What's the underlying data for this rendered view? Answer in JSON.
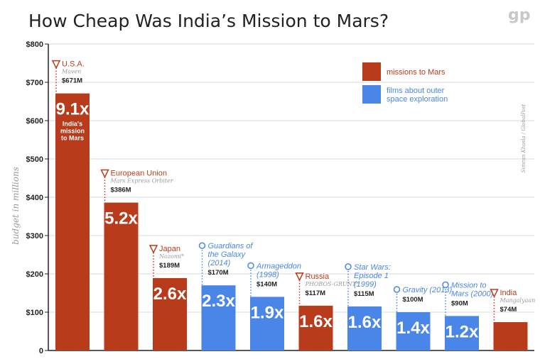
{
  "title": "How Cheap Was India’s Mission to Mars?",
  "logo_text": "gp",
  "credit": "Simran Khosla / GlobalPost",
  "colors": {
    "mars": "#b83c1c",
    "film": "#4a86e8",
    "grid": "#d9d9d9",
    "axis": "#222222"
  },
  "legend": [
    {
      "label": "missions to Mars",
      "type": "mars"
    },
    {
      "label": "films about outer space exploration",
      "type": "film"
    }
  ],
  "chart_data": {
    "type": "bar",
    "title": "How Cheap Was India’s Mission to Mars?",
    "ylabel": "budget in millions",
    "ylim": [
      0,
      800
    ],
    "yticks": [
      "0",
      "$100",
      "$200",
      "$300",
      "$400",
      "$500",
      "$600",
      "$700",
      "$800"
    ],
    "grid": true,
    "legend_position": "top-right",
    "bars": [
      {
        "category": "U.S.A.",
        "subtitle": "Maven",
        "value_label": "$671M",
        "value": 671,
        "multiplier": "9.1x",
        "note": "India's mission to Mars",
        "type": "mars"
      },
      {
        "category": "European Union",
        "subtitle": "Mars Express Orbiter",
        "value_label": "$386M",
        "value": 386,
        "multiplier": "5.2x",
        "type": "mars"
      },
      {
        "category": "Japan",
        "subtitle": "Nozomi*",
        "value_label": "$189M",
        "value": 189,
        "multiplier": "2.6x",
        "type": "mars"
      },
      {
        "category": "Guardians of the Galaxy (2014)",
        "value_label": "$170M",
        "value": 170,
        "multiplier": "2.3x",
        "type": "film"
      },
      {
        "category": "Armageddon (1998)",
        "value_label": "$140M",
        "value": 140,
        "multiplier": "1.9x",
        "type": "film"
      },
      {
        "category": "Russia",
        "subtitle": "PHOBOS-GRUNT*",
        "value_label": "$117M",
        "value": 117,
        "multiplier": "1.6x",
        "type": "mars"
      },
      {
        "category": "Star Wars: Episode 1 (1999)",
        "value_label": "$115M",
        "value": 115,
        "multiplier": "1.6x",
        "type": "film"
      },
      {
        "category": "Gravity (2013)",
        "value_label": "$100M",
        "value": 100,
        "multiplier": "1.4x",
        "type": "film"
      },
      {
        "category": "Mission to Mars (2000)",
        "value_label": "$90M",
        "value": 90,
        "multiplier": "1.2x",
        "type": "film"
      },
      {
        "category": "India",
        "subtitle": "Mangalyaan",
        "value_label": "$74M",
        "value": 74,
        "multiplier": "",
        "type": "mars"
      }
    ]
  }
}
